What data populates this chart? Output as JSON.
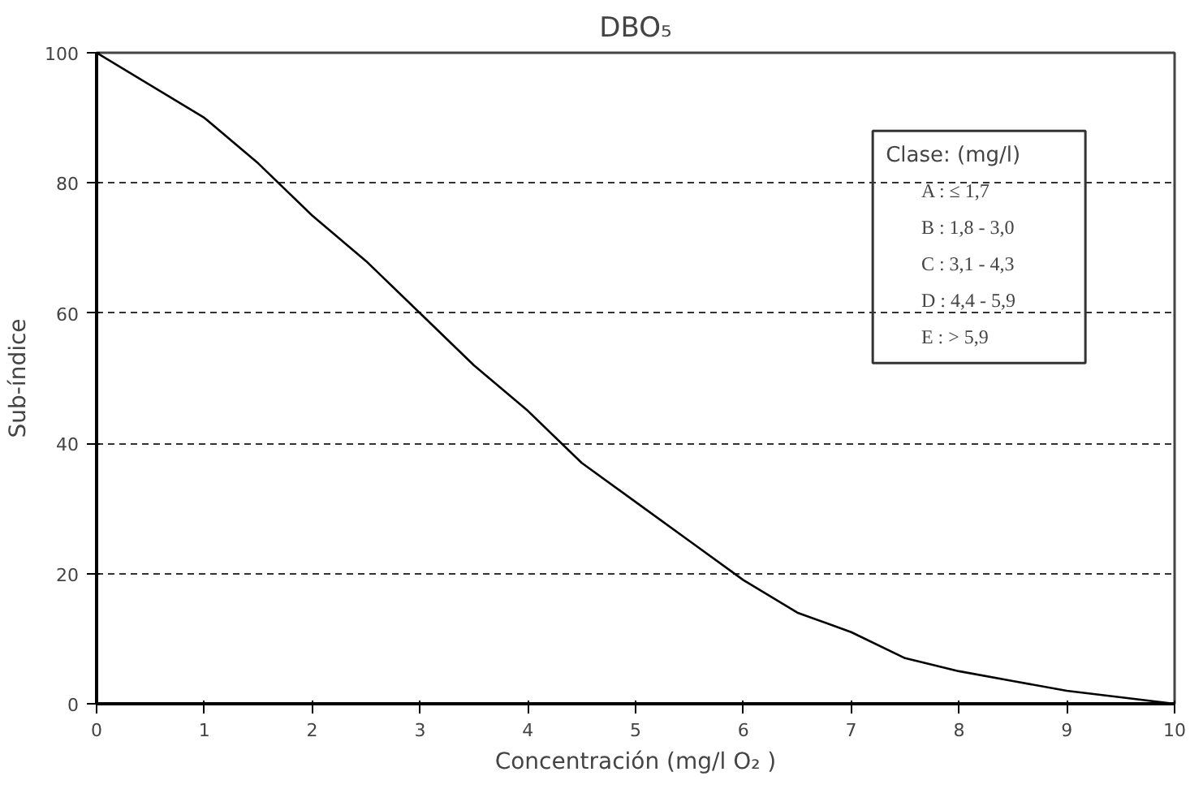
{
  "chart_data": {
    "type": "line",
    "title": "DBO₅",
    "xlabel": "Concentración (mg/l O₂ )",
    "ylabel": "Sub-índice",
    "x": [
      0,
      1,
      1.5,
      2,
      2.5,
      3,
      3.5,
      4,
      4.5,
      5,
      5.5,
      6,
      6.5,
      7,
      7.5,
      8,
      8.5,
      9,
      9.5,
      10
    ],
    "series": [
      {
        "color": "#000000",
        "values": [
          100,
          90,
          83,
          75,
          68,
          60,
          52,
          45,
          37,
          31,
          25,
          19,
          14,
          11,
          7,
          5,
          3.5,
          2,
          1,
          0
        ]
      }
    ],
    "xlim": [
      0,
      10
    ],
    "ylim": [
      0,
      100
    ],
    "xticks": [
      0,
      1,
      2,
      3,
      4,
      5,
      6,
      7,
      8,
      9,
      10
    ],
    "yticks": [
      0,
      20,
      40,
      60,
      80,
      100
    ],
    "grid": "y",
    "line_style": "solid",
    "marker": "none",
    "annotations": [
      "Clase: (mg/l)",
      "A : ≤ 1,7",
      "B : 1,8 - 3,0",
      "C : 3,1 - 4,3",
      "D : 4,4 - 5,9",
      "E : > 5,9"
    ]
  }
}
